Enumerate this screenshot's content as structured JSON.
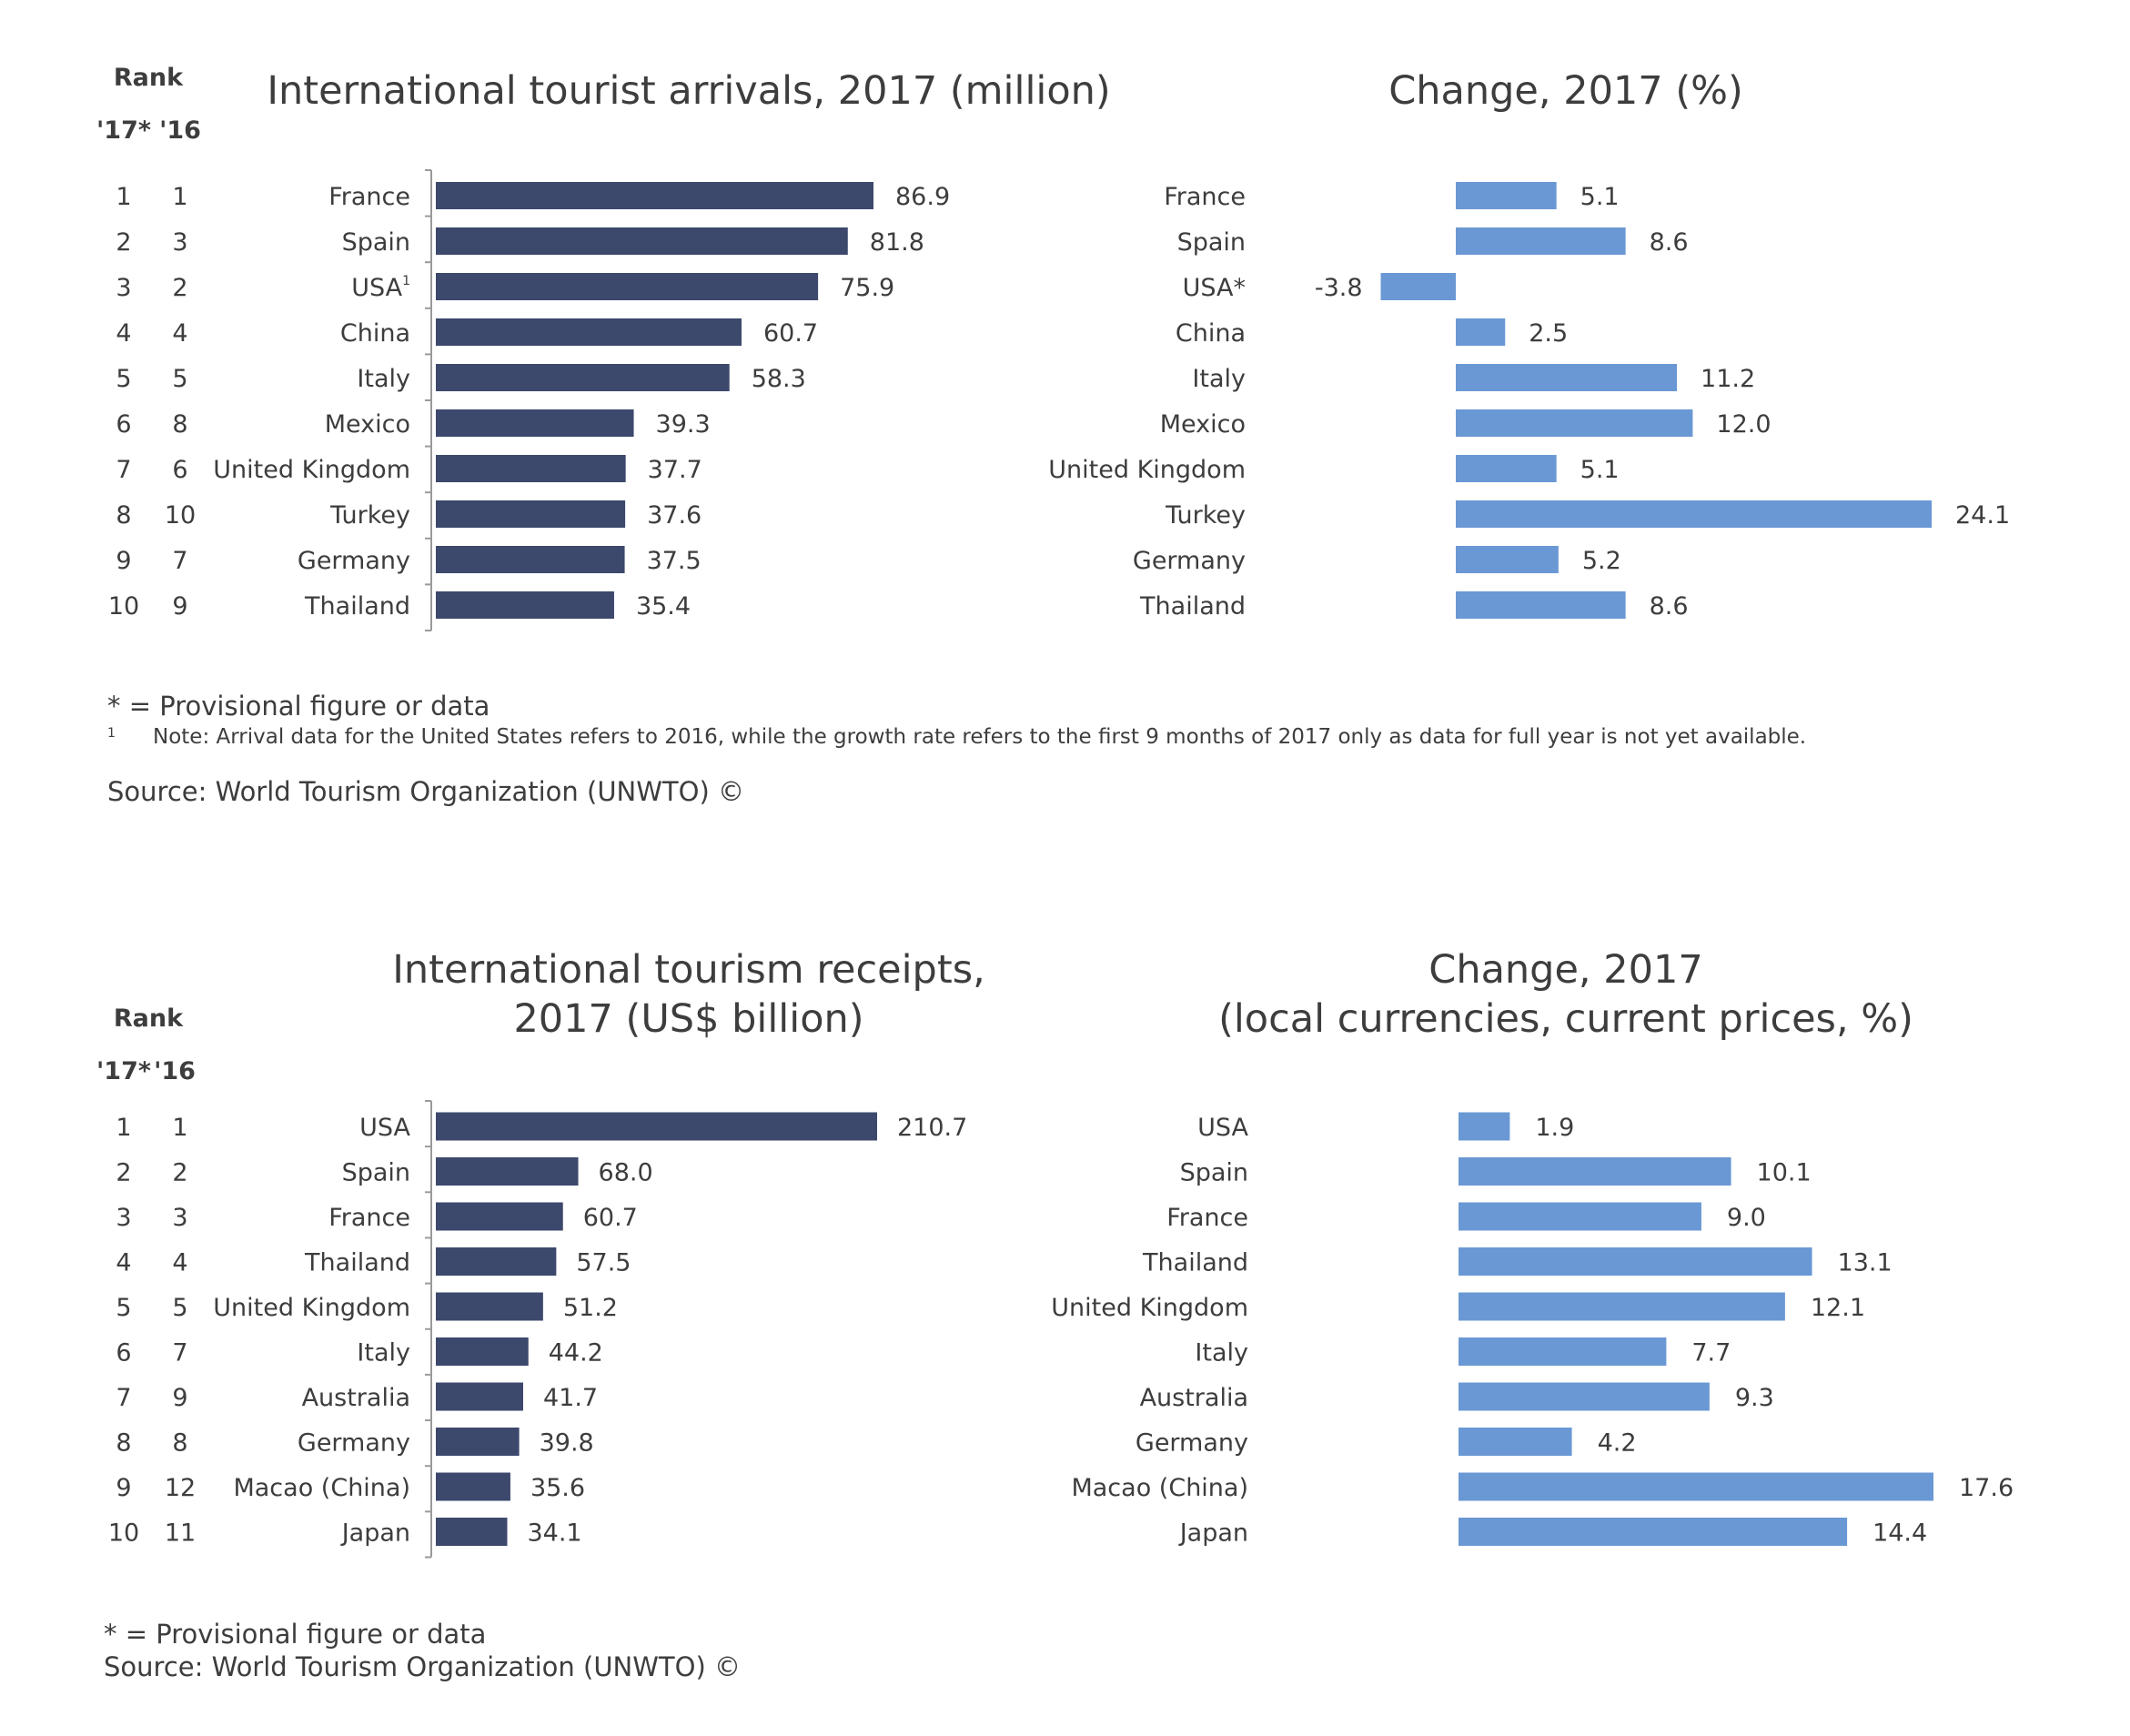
{
  "colors": {
    "dark_bar": "#3c486c",
    "light_bar": "#6a98d4",
    "axis": "#9a9a9a",
    "text": "#3d3d3d"
  },
  "top": {
    "rank_header": "Rank",
    "rank_col_2017": "'17*",
    "rank_col_2016": "'16",
    "footnote_star": "* = Provisional figure or data",
    "footnote_mark": "1",
    "footnote_note": "Note: Arrival data for the United States refers to 2016, while the growth rate refers to the first 9 months of 2017 only as data for full year is not yet available.",
    "source": "Source: World Tourism Organization (UNWTO) ©"
  },
  "bottom": {
    "rank_header": "Rank",
    "rank_col_2017": "'17*",
    "rank_col_2016": "'16",
    "footnote_star": "* = Provisional figure or data",
    "source": "Source: World Tourism Organization (UNWTO) ©"
  },
  "chart_data": [
    {
      "type": "bar",
      "orientation": "horizontal",
      "title": "International tourist arrivals, 2017 (million)",
      "categories": [
        "France",
        "Spain",
        "USA",
        "China",
        "Italy",
        "Mexico",
        "United Kingdom",
        "Turkey",
        "Germany",
        "Thailand"
      ],
      "category_marks": [
        "",
        "",
        "1",
        "",
        "",
        "",
        "",
        "",
        "",
        ""
      ],
      "rank_2017": [
        "1",
        "2",
        "3",
        "4",
        "5",
        "6",
        "7",
        "8",
        "9",
        "10"
      ],
      "rank_2016": [
        "1",
        "3",
        "2",
        "4",
        "5",
        "8",
        "6",
        "10",
        "7",
        "9"
      ],
      "values": [
        86.9,
        81.8,
        75.9,
        60.7,
        58.3,
        39.3,
        37.7,
        37.6,
        37.5,
        35.4
      ],
      "value_labels": [
        "86.9",
        "81.8",
        "75.9",
        "60.7",
        "58.3",
        "39.3",
        "37.7",
        "37.6",
        "37.5",
        "35.4"
      ],
      "xlim": [
        0,
        87
      ]
    },
    {
      "type": "bar",
      "orientation": "horizontal",
      "title": "Change, 2017 (%)",
      "categories": [
        "France",
        "Spain",
        "USA*",
        "China",
        "Italy",
        "Mexico",
        "United Kingdom",
        "Turkey",
        "Germany",
        "Thailand"
      ],
      "values": [
        5.1,
        8.6,
        -3.8,
        2.5,
        11.2,
        12.0,
        5.1,
        24.1,
        5.2,
        8.6
      ],
      "value_labels": [
        "5.1",
        "8.6",
        "-3.8",
        "2.5",
        "11.2",
        "12.0",
        "5.1",
        "24.1",
        "5.2",
        "8.6"
      ],
      "xlim": [
        -3.8,
        24.1
      ]
    },
    {
      "type": "bar",
      "orientation": "horizontal",
      "title": [
        "International tourism receipts,",
        "2017 (US$ billion)"
      ],
      "categories": [
        "USA",
        "Spain",
        "France",
        "Thailand",
        "United Kingdom",
        "Italy",
        "Australia",
        "Germany",
        "Macao (China)",
        "Japan"
      ],
      "rank_2017": [
        "1",
        "2",
        "3",
        "4",
        "5",
        "6",
        "7",
        "8",
        "9",
        "10"
      ],
      "rank_2016": [
        "1",
        "2",
        "3",
        "4",
        "5",
        "7",
        "9",
        "8",
        "12",
        "11"
      ],
      "values": [
        210.7,
        68.0,
        60.7,
        57.5,
        51.2,
        44.2,
        41.7,
        39.8,
        35.6,
        34.1
      ],
      "value_labels": [
        "210.7",
        "68.0",
        "60.7",
        "57.5",
        "51.2",
        "44.2",
        "41.7",
        "39.8",
        "35.6",
        "34.1"
      ],
      "xlim": [
        0,
        210.7
      ]
    },
    {
      "type": "bar",
      "orientation": "horizontal",
      "title": [
        "Change, 2017",
        "(local currencies, current prices, %)"
      ],
      "categories": [
        "USA",
        "Spain",
        "France",
        "Thailand",
        "United Kingdom",
        "Italy",
        "Australia",
        "Germany",
        "Macao (China)",
        "Japan"
      ],
      "values": [
        1.9,
        10.1,
        9.0,
        13.1,
        12.1,
        7.7,
        9.3,
        4.2,
        17.6,
        14.4
      ],
      "value_labels": [
        "1.9",
        "10.1",
        "9.0",
        "13.1",
        "12.1",
        "7.7",
        "9.3",
        "4.2",
        "17.6",
        "14.4"
      ],
      "xlim": [
        0,
        17.6
      ]
    }
  ]
}
